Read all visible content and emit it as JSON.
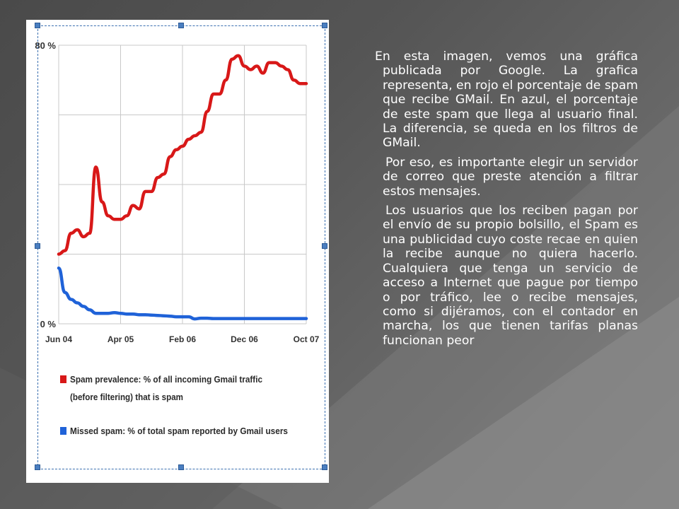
{
  "colors": {
    "spam_line": "#d81818",
    "missed_line": "#1f62d8",
    "grid": "#c8c8c8",
    "text": "#ffffff"
  },
  "slide": {
    "paragraphs": [
      "En esta imagen, vemos una gráfica publicada por Google. La grafica representa, en rojo el porcentaje de spam que recibe GMail. En azul, el porcentaje de este spam que llega al usuario final. La diferencia, se queda en los filtros de GMail.",
      "Por eso, es importante elegir un servidor de correo que preste atención a filtrar estos mensajes.",
      "Los usuarios que los reciben pagan por el envío de su propio bolsillo, el Spam es una publicidad cuyo coste recae en quien la recibe aunque no quiera hacerlo. Cualquiera que tenga un servicio de acceso a Internet que pague por tiempo o por tráfico, lee o recibe mensajes, como si dijéramos, con el contador en marcha, los que tienen tarifas planas funcionan peor"
    ]
  },
  "chart_data": {
    "type": "line",
    "y_tick_labels": [
      "80 %",
      "0 %"
    ],
    "ylim": [
      0,
      80
    ],
    "grid": true,
    "legend_placement": "bottom",
    "x_tick_labels": [
      "Jun 04",
      "Apr 05",
      "Feb 06",
      "Dec 06",
      "Oct 07"
    ],
    "x": [
      0,
      1,
      2,
      3,
      4,
      5,
      6,
      7,
      8,
      9,
      10,
      11,
      12,
      13,
      14,
      15,
      16,
      17,
      18,
      19,
      20,
      21,
      22,
      23,
      24,
      25,
      26,
      27,
      28,
      29,
      30,
      31,
      32,
      33,
      34,
      35,
      36,
      37,
      38,
      39,
      40
    ],
    "series": [
      {
        "name": "Spam prevalence: % of all incoming Gmail traffic (before filtering) that is spam",
        "legend_lines": [
          "Spam prevalence: % of all incoming Gmail traffic",
          "(before filtering) that is spam"
        ],
        "color": "#d81818",
        "values": [
          20,
          21,
          26,
          27,
          25,
          26,
          45,
          35,
          31,
          30,
          30,
          31,
          34,
          33,
          38,
          38,
          42,
          43,
          48,
          50,
          51,
          53,
          54,
          55,
          61,
          66,
          66,
          70,
          76,
          77,
          74,
          73,
          74,
          72,
          75,
          75,
          74,
          73,
          70,
          69,
          69
        ]
      },
      {
        "name": "Missed spam: % of total spam reported by Gmail users",
        "legend_lines": [
          "Missed spam: % of total spam reported by Gmail users"
        ],
        "color": "#1f62d8",
        "values": [
          16,
          9,
          7,
          6,
          5,
          4,
          3,
          3,
          3,
          3.2,
          3,
          2.8,
          2.8,
          2.6,
          2.6,
          2.5,
          2.4,
          2.3,
          2.2,
          2,
          2,
          2,
          1.4,
          1.6,
          1.6,
          1.5,
          1.5,
          1.5,
          1.5,
          1.5,
          1.5,
          1.5,
          1.5,
          1.5,
          1.5,
          1.5,
          1.5,
          1.5,
          1.5,
          1.5,
          1.5
        ]
      }
    ]
  }
}
